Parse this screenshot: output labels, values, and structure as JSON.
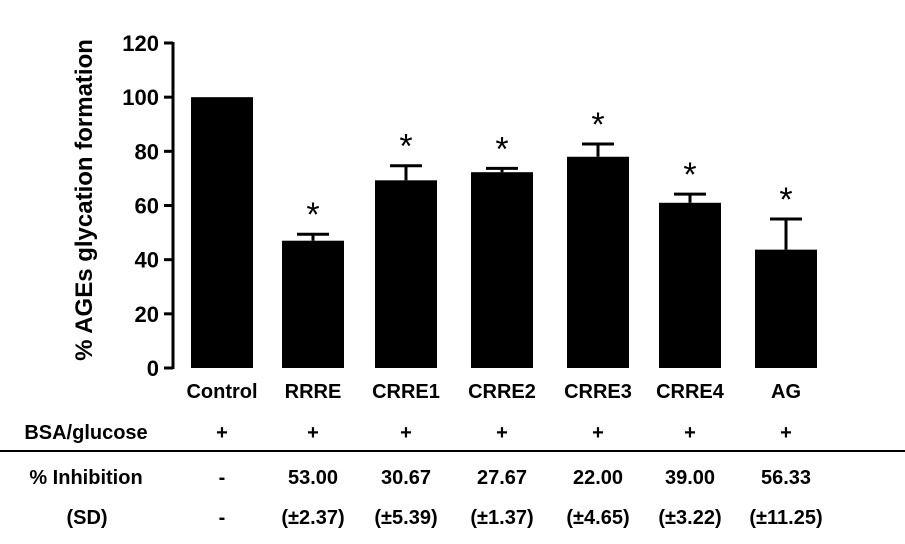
{
  "chart_data": {
    "type": "bar",
    "ylabel": "% AGEs glycation formation",
    "ylim": [
      0,
      120
    ],
    "yticks": [
      0,
      20,
      40,
      60,
      80,
      100,
      120
    ],
    "categories": [
      "Control",
      "RRRE",
      "CRRE1",
      "CRRE2",
      "CRRE3",
      "CRRE4",
      "AG"
    ],
    "values": [
      100,
      47,
      69.3,
      72.3,
      78,
      61,
      43.7
    ],
    "errors": [
      0,
      2.4,
      5.4,
      1.4,
      4.7,
      3.2,
      11.3
    ],
    "significance": [
      "",
      "*",
      "*",
      "*",
      "*",
      "*",
      "*"
    ],
    "bar_color": "#000000",
    "grid": false
  },
  "table": {
    "rows": [
      {
        "label": "BSA/glucose",
        "cells": [
          "+",
          "+",
          "+",
          "+",
          "+",
          "+",
          "+"
        ]
      },
      {
        "label": "% Inhibition",
        "cells": [
          "-",
          "53.00",
          "30.67",
          "27.67",
          "22.00",
          "39.00",
          "56.33"
        ]
      },
      {
        "label": "(SD)",
        "cells": [
          "-",
          "(±2.37)",
          "(±5.39)",
          "(±1.37)",
          "(±4.65)",
          "(±3.22)",
          "(±11.25)"
        ]
      }
    ]
  }
}
